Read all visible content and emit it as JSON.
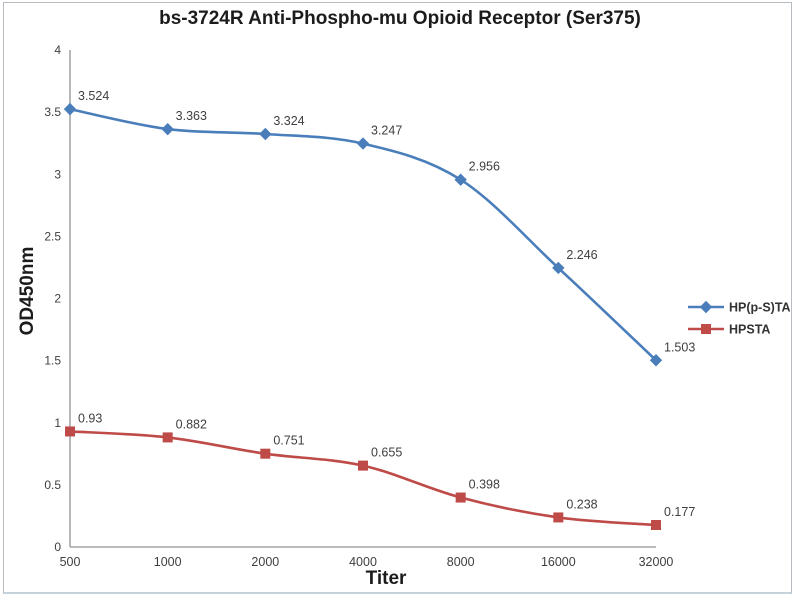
{
  "chart_data": {
    "type": "line",
    "title": "bs-3724R Anti-Phospho-mu Opioid Receptor (Ser375)",
    "xlabel": "Titer",
    "ylabel": "OD450nm",
    "categories": [
      "500",
      "1000",
      "2000",
      "4000",
      "8000",
      "16000",
      "32000"
    ],
    "series": [
      {
        "name": "HP(p-S)TA",
        "marker": "diamond",
        "color": "#4a7ebb",
        "values": [
          3.524,
          3.363,
          3.324,
          3.247,
          2.956,
          2.246,
          1.503
        ],
        "point_labels": [
          "3.524",
          "3.363",
          "3.324",
          "3.247",
          "2.956",
          "2.246",
          "1.503"
        ]
      },
      {
        "name": "HPSTA",
        "marker": "square",
        "color": "#be4b48",
        "values": [
          0.93,
          0.882,
          0.751,
          0.655,
          0.398,
          0.238,
          0.177
        ],
        "point_labels": [
          "0.93",
          "0.882",
          "0.751",
          "0.655",
          "0.398",
          "0.238",
          "0.177"
        ]
      }
    ],
    "ylim": [
      0,
      4
    ],
    "ytick_labels": [
      "0",
      "0.5",
      "1",
      "1.5",
      "2",
      "2.5",
      "3",
      "3.5",
      "4"
    ],
    "yticks": [
      0,
      0.5,
      1,
      1.5,
      2,
      2.5,
      3,
      3.5,
      4
    ],
    "grid": false,
    "legend_position": "right-middle",
    "colors": {
      "axis": "#a6a6a6",
      "tick_text": "#3f3f3f",
      "point_label_text": "#3f3f3f",
      "legend_text": "#333333",
      "title_text": "#1c1c1c"
    }
  }
}
